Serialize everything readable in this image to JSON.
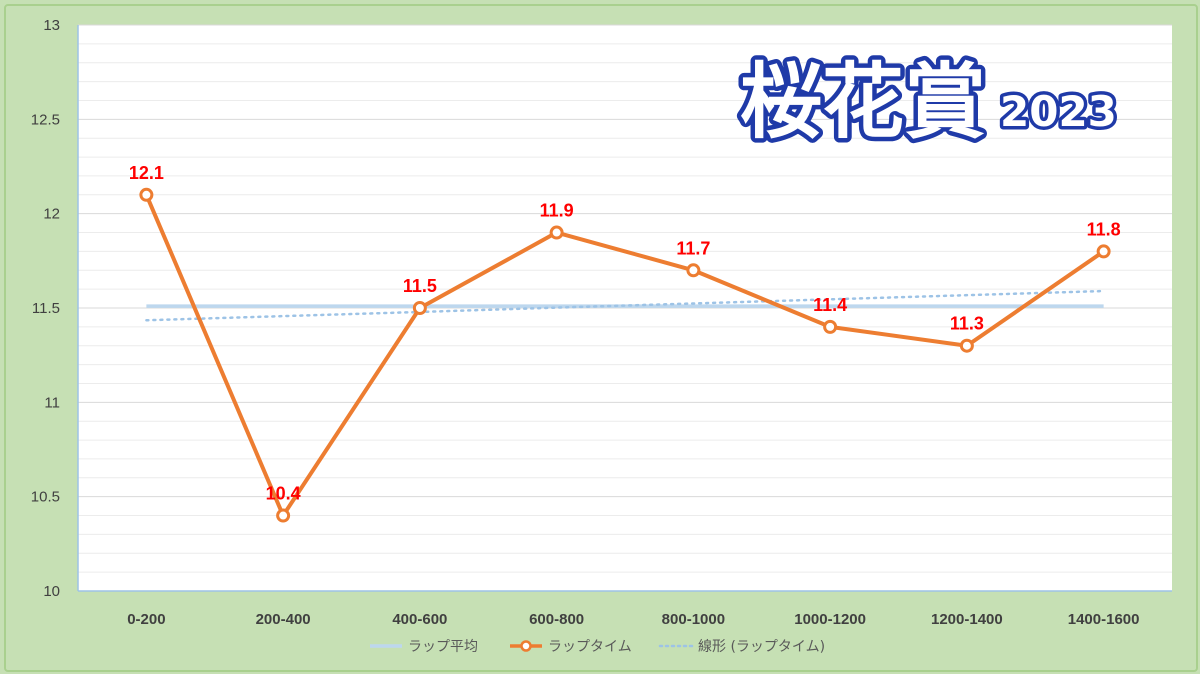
{
  "chart_data": {
    "type": "line",
    "title": "桜花賞",
    "title_year": "2023",
    "categories": [
      "0-200",
      "200-400",
      "400-600",
      "600-800",
      "800-1000",
      "1000-1200",
      "1200-1400",
      "1400-1600"
    ],
    "series": [
      {
        "name": "ラップ平均",
        "values": [
          11.51,
          11.51,
          11.51,
          11.51,
          11.51,
          11.51,
          11.51,
          11.51
        ],
        "color": "#bdd7ee",
        "style": "solid"
      },
      {
        "name": "ラップタイム",
        "values": [
          12.1,
          10.4,
          11.5,
          11.9,
          11.7,
          11.4,
          11.3,
          11.8
        ],
        "color": "#ed7d31",
        "style": "solid-markers",
        "labels": [
          "12.1",
          "10.4",
          "11.5",
          "11.9",
          "11.7",
          "11.4",
          "11.3",
          "11.8"
        ]
      },
      {
        "name": "線形 (ラップタイム)",
        "values": [
          11.435,
          11.457,
          11.479,
          11.502,
          11.524,
          11.546,
          11.568,
          11.59
        ],
        "color": "#9dc3e6",
        "style": "dotted"
      }
    ],
    "ylim": [
      10,
      13
    ],
    "yticks": [
      "10",
      "10.5",
      "11",
      "11.5",
      "12",
      "12.5",
      "13"
    ],
    "grid": true,
    "legend_position": "bottom",
    "label_color": "#ff0000",
    "background": "#c6e0b4"
  }
}
